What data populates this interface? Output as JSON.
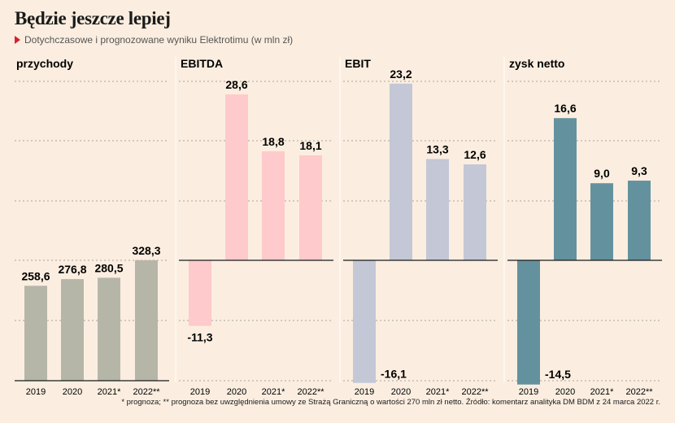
{
  "header": {
    "title": "Będzie jeszcze lepiej",
    "subtitle": "Dotychczasowe i prognozowane wyniku Elektrotimu (w mln zł)"
  },
  "footnote": "* prognoza; ** prognoza bez uwzględnienia umowy ze Strażą Graniczną o wartości 270 mln zł netto. Źródło: komentarz analityka DM BDM z 24 marca 2022 r.",
  "colors": {
    "background": "#fbeee0",
    "accent_triangle": "#d6202c",
    "przychody": "#b6b6a8",
    "ebitda": "#fecacb",
    "ebit": "#c3c7d6",
    "zysk_netto": "#63929e"
  },
  "chart_data": [
    {
      "type": "bar",
      "title": "przychody",
      "categories": [
        "2019",
        "2020",
        "2021*",
        "2022**"
      ],
      "values": [
        258.6,
        276.8,
        280.5,
        328.3
      ],
      "value_labels": [
        "258,6",
        "276,8",
        "280,5",
        "328,3"
      ],
      "ylim": [
        0,
        400
      ],
      "grid": true,
      "color": "#b6b6a8"
    },
    {
      "type": "bar",
      "title": "EBITDA",
      "categories": [
        "2019",
        "2020",
        "2021*",
        "2022**"
      ],
      "values": [
        -11.3,
        28.6,
        18.8,
        18.1
      ],
      "value_labels": [
        "-11,3",
        "28,6",
        "18,8",
        "18,1"
      ],
      "ylim": [
        -20,
        30
      ],
      "grid": true,
      "color": "#fecacb"
    },
    {
      "type": "bar",
      "title": "EBIT",
      "categories": [
        "2019",
        "2020",
        "2021*",
        "2022**"
      ],
      "values": [
        -16.1,
        23.2,
        13.3,
        12.6
      ],
      "value_labels": [
        "-16,1",
        "23,2",
        "13,3",
        "12,6"
      ],
      "ylim": [
        -20,
        25
      ],
      "grid": true,
      "color": "#c3c7d6"
    },
    {
      "type": "bar",
      "title": "zysk netto",
      "categories": [
        "2019",
        "2020",
        "2021*",
        "2022**"
      ],
      "values": [
        -14.5,
        16.6,
        9.0,
        9.3
      ],
      "value_labels": [
        "-14,5",
        "16,6",
        "9,0",
        "9,3"
      ],
      "ylim": [
        -15,
        20
      ],
      "grid": true,
      "color": "#63929e"
    }
  ]
}
